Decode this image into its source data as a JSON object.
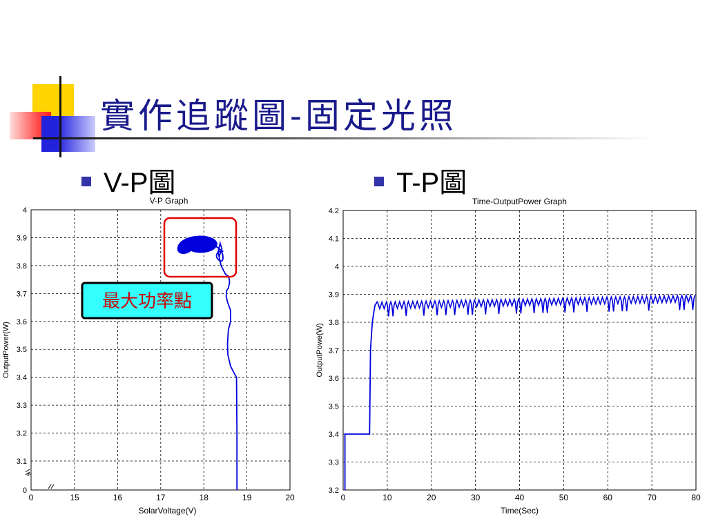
{
  "slide": {
    "title": "實作追蹤圖-固定光照",
    "bullets": [
      "V-P圖",
      "T-P圖"
    ]
  },
  "colors": {
    "title": "#1a1a8c",
    "series": "#0000dd",
    "highlight": "#e00000",
    "callout_bg": "#33ffff"
  },
  "chart_data": [
    {
      "type": "line",
      "title": "V-P Graph",
      "xlabel": "SolarVoltage(V)",
      "ylabel": "OutputPower(W)",
      "xlim": [
        14,
        20
      ],
      "ylim": [
        3.0,
        4.0
      ],
      "y_axis_break": true,
      "x_axis_break": true,
      "xticks": [
        0,
        15,
        16,
        17,
        18,
        19,
        20
      ],
      "yticks": [
        0,
        3.1,
        3.2,
        3.3,
        3.4,
        3.5,
        3.6,
        3.7,
        3.8,
        3.9,
        4
      ],
      "grid": true,
      "annotation": "最大功率點",
      "series": [
        {
          "x": [
            18.77,
            18.77,
            18.76,
            18.72,
            18.62,
            18.56,
            18.55,
            18.57,
            18.62,
            18.62,
            18.55,
            18.52,
            18.53,
            18.57,
            18.6,
            18.58,
            18.5,
            18.4,
            18.33,
            18.38,
            18.42,
            18.35
          ],
          "y": [
            3.0,
            3.2,
            3.4,
            3.41,
            3.44,
            3.48,
            3.52,
            3.57,
            3.6,
            3.64,
            3.67,
            3.69,
            3.71,
            3.72,
            3.74,
            3.76,
            3.77,
            3.8,
            3.85,
            3.88,
            3.86,
            3.83
          ]
        }
      ],
      "cluster": {
        "x_range": [
          17.4,
          18.4
        ],
        "y_range": [
          3.84,
          3.9
        ]
      }
    },
    {
      "type": "line",
      "title": "Time-OutputPower Graph",
      "xlabel": "Time(Sec)",
      "ylabel": "OutputPowe(W)",
      "xlim": [
        0,
        80
      ],
      "ylim": [
        3.2,
        4.2
      ],
      "xticks": [
        0,
        10,
        20,
        30,
        40,
        50,
        60,
        70,
        80
      ],
      "yticks": [
        3.2,
        3.3,
        3.4,
        3.5,
        3.6,
        3.7,
        3.8,
        3.9,
        4,
        4.1,
        4.2
      ],
      "grid": true,
      "series": [
        {
          "segments": [
            {
              "x": [
                0.4,
                0.4,
                6,
                6.2,
                6.6,
                7.2,
                7.8
              ],
              "y": [
                3.2,
                3.4,
                3.4,
                3.7,
                3.8,
                3.86,
                3.875
              ]
            }
          ],
          "steady": {
            "x_start": 7.8,
            "x_end": 80,
            "y_start": 3.86,
            "y_end": 3.885,
            "ripple_period": 1.0,
            "ripple_amplitude": 0.02,
            "dip_depth": 0.04
          }
        }
      ]
    }
  ]
}
